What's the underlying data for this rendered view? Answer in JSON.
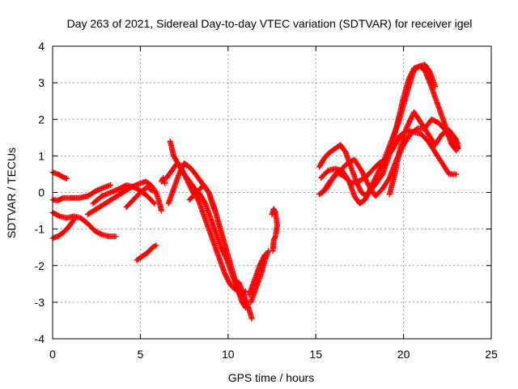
{
  "chart_data": {
    "type": "scatter",
    "title": "Day 263 of 2021, Sidereal Day-to-day VTEC variation (SDTVAR) for receiver igel",
    "xlabel": "GPS time / hours",
    "ylabel": "SDTVAR / TECUs",
    "xlim": [
      0,
      25
    ],
    "ylim": [
      -4,
      4
    ],
    "xticks": [
      0,
      5,
      10,
      15,
      20,
      25
    ],
    "yticks": [
      -4,
      -3,
      -2,
      -1,
      0,
      1,
      2,
      3,
      4
    ],
    "grid": true,
    "marker": "+",
    "color": "#ff0000",
    "series": [
      {
        "points": [
          [
            0.0,
            0.55
          ],
          [
            0.3,
            0.5
          ],
          [
            0.6,
            0.42
          ],
          [
            0.8,
            0.38
          ]
        ]
      },
      {
        "points": [
          [
            0.0,
            -0.2
          ],
          [
            0.3,
            -0.22
          ],
          [
            0.6,
            -0.15
          ],
          [
            1.0,
            -0.15
          ],
          [
            1.5,
            -0.15
          ],
          [
            2.0,
            -0.1
          ],
          [
            2.5,
            0.05
          ],
          [
            3.0,
            0.15
          ],
          [
            3.3,
            0.2
          ]
        ]
      },
      {
        "points": [
          [
            0.0,
            -0.55
          ],
          [
            0.4,
            -0.65
          ],
          [
            0.8,
            -0.7
          ],
          [
            1.2,
            -0.65
          ],
          [
            1.6,
            -0.7
          ],
          [
            2.0,
            -0.85
          ],
          [
            2.4,
            -1.05
          ],
          [
            2.8,
            -1.15
          ],
          [
            3.2,
            -1.2
          ],
          [
            3.6,
            -1.2
          ]
        ]
      },
      {
        "points": [
          [
            0.0,
            -1.25
          ],
          [
            0.3,
            -1.2
          ],
          [
            0.6,
            -1.1
          ],
          [
            0.9,
            -0.95
          ],
          [
            1.2,
            -0.75
          ]
        ]
      },
      {
        "points": [
          [
            2.0,
            -0.6
          ],
          [
            2.5,
            -0.45
          ],
          [
            3.0,
            -0.3
          ],
          [
            3.5,
            -0.15
          ],
          [
            4.0,
            0.0
          ],
          [
            4.5,
            0.15
          ],
          [
            5.0,
            0.25
          ],
          [
            5.3,
            0.3
          ],
          [
            5.6,
            0.2
          ],
          [
            5.9,
            0.0
          ],
          [
            6.1,
            -0.3
          ],
          [
            6.2,
            -0.5
          ]
        ]
      },
      {
        "points": [
          [
            2.3,
            -0.3
          ],
          [
            2.8,
            -0.1
          ],
          [
            3.3,
            0.0
          ],
          [
            3.8,
            0.1
          ],
          [
            4.2,
            0.2
          ],
          [
            4.6,
            0.15
          ],
          [
            5.0,
            0.05
          ],
          [
            5.4,
            -0.1
          ],
          [
            5.8,
            -0.3
          ]
        ]
      },
      {
        "points": [
          [
            4.2,
            -0.4
          ],
          [
            4.6,
            -0.2
          ],
          [
            5.0,
            0.0
          ],
          [
            5.4,
            0.15
          ],
          [
            5.7,
            0.05
          ]
        ]
      },
      {
        "points": [
          [
            4.8,
            -1.85
          ],
          [
            5.1,
            -1.75
          ],
          [
            5.4,
            -1.65
          ],
          [
            5.7,
            -1.5
          ],
          [
            5.9,
            -1.45
          ]
        ]
      },
      {
        "points": [
          [
            6.2,
            0.3
          ],
          [
            6.3,
            0.4
          ],
          [
            6.4,
            0.25
          ]
        ]
      },
      {
        "points": [
          [
            6.7,
            1.4
          ],
          [
            6.9,
            1.0
          ],
          [
            7.2,
            0.75
          ],
          [
            7.5,
            0.5
          ],
          [
            7.8,
            0.3
          ],
          [
            8.1,
            0.1
          ],
          [
            8.4,
            -0.05
          ],
          [
            8.7,
            -0.3
          ],
          [
            9.0,
            -0.7
          ],
          [
            9.3,
            -1.1
          ],
          [
            9.6,
            -1.5
          ],
          [
            9.9,
            -1.8
          ],
          [
            10.2,
            -2.2
          ],
          [
            10.5,
            -2.6
          ],
          [
            10.8,
            -3.0
          ],
          [
            11.0,
            -3.15
          ]
        ]
      },
      {
        "points": [
          [
            6.5,
            0.4
          ],
          [
            6.8,
            0.6
          ],
          [
            7.1,
            0.8
          ],
          [
            7.4,
            0.6
          ],
          [
            7.7,
            0.3
          ],
          [
            8.0,
            0.0
          ],
          [
            8.3,
            -0.2
          ],
          [
            8.6,
            -0.6
          ],
          [
            8.9,
            -1.0
          ],
          [
            9.2,
            -1.4
          ],
          [
            9.5,
            -1.8
          ],
          [
            9.8,
            -2.2
          ],
          [
            10.1,
            -2.5
          ],
          [
            10.4,
            -2.65
          ],
          [
            10.6,
            -2.45
          ],
          [
            10.9,
            -2.8
          ],
          [
            11.2,
            -3.2
          ],
          [
            11.35,
            -3.45
          ]
        ]
      },
      {
        "points": [
          [
            6.6,
            -0.3
          ],
          [
            6.9,
            0.1
          ],
          [
            7.2,
            0.5
          ],
          [
            7.5,
            0.8
          ],
          [
            7.9,
            0.65
          ],
          [
            8.3,
            0.4
          ],
          [
            8.6,
            0.2
          ],
          [
            8.9,
            0.0
          ],
          [
            9.2,
            -0.45
          ]
        ]
      },
      {
        "points": [
          [
            7.8,
            -0.2
          ],
          [
            8.2,
            0.0
          ],
          [
            8.6,
            0.2
          ],
          [
            8.9,
            0.0
          ],
          [
            9.2,
            -0.4
          ],
          [
            9.5,
            -0.9
          ],
          [
            9.8,
            -1.4
          ],
          [
            10.1,
            -1.9
          ],
          [
            10.4,
            -2.4
          ],
          [
            10.7,
            -2.8
          ],
          [
            11.0,
            -2.7
          ]
        ]
      },
      {
        "points": [
          [
            11.3,
            -3.0
          ],
          [
            11.6,
            -2.6
          ],
          [
            11.9,
            -2.2
          ],
          [
            12.1,
            -1.85
          ],
          [
            12.3,
            -1.6
          ]
        ]
      },
      {
        "points": [
          [
            11.2,
            -2.8
          ],
          [
            11.5,
            -2.4
          ],
          [
            11.8,
            -2.0
          ],
          [
            12.1,
            -1.7
          ]
        ]
      },
      {
        "points": [
          [
            12.5,
            -0.6
          ],
          [
            12.6,
            -0.45
          ],
          [
            12.7,
            -0.55
          ],
          [
            12.8,
            -0.9
          ],
          [
            12.7,
            -1.2
          ],
          [
            12.6,
            -1.3
          ],
          [
            12.55,
            -1.6
          ]
        ]
      },
      {
        "points": [
          [
            15.2,
            0.7
          ],
          [
            15.5,
            0.95
          ],
          [
            15.8,
            1.1
          ],
          [
            16.1,
            1.2
          ],
          [
            16.4,
            1.3
          ],
          [
            16.7,
            1.1
          ],
          [
            17.0,
            0.7
          ],
          [
            17.3,
            0.3
          ],
          [
            17.6,
            0.0
          ],
          [
            17.9,
            -0.1
          ],
          [
            18.2,
            0.1
          ],
          [
            18.5,
            0.3
          ],
          [
            18.8,
            0.5
          ],
          [
            19.1,
            0.9
          ],
          [
            19.4,
            1.4
          ],
          [
            19.7,
            2.0
          ],
          [
            20.0,
            2.6
          ],
          [
            20.3,
            3.1
          ],
          [
            20.6,
            3.4
          ],
          [
            20.9,
            3.45
          ],
          [
            21.2,
            3.35
          ],
          [
            21.5,
            3.0
          ]
        ]
      },
      {
        "points": [
          [
            15.3,
            0.4
          ],
          [
            15.7,
            0.6
          ],
          [
            16.1,
            0.65
          ],
          [
            16.5,
            0.6
          ],
          [
            16.9,
            0.3
          ],
          [
            17.2,
            -0.1
          ],
          [
            17.5,
            -0.3
          ],
          [
            17.8,
            -0.2
          ],
          [
            18.1,
            0.1
          ],
          [
            18.5,
            0.5
          ],
          [
            18.9,
            0.9
          ],
          [
            19.3,
            1.4
          ],
          [
            19.7,
            1.9
          ],
          [
            20.0,
            2.4
          ],
          [
            20.3,
            2.9
          ],
          [
            20.6,
            3.35
          ],
          [
            20.9,
            3.45
          ],
          [
            21.2,
            3.5
          ],
          [
            21.5,
            3.3
          ],
          [
            21.8,
            2.9
          ]
        ]
      },
      {
        "points": [
          [
            15.2,
            -0.05
          ],
          [
            15.6,
            0.1
          ],
          [
            16.0,
            0.4
          ],
          [
            16.4,
            0.6
          ],
          [
            16.8,
            0.8
          ],
          [
            17.2,
            0.9
          ],
          [
            17.6,
            0.6
          ],
          [
            18.0,
            0.2
          ],
          [
            18.4,
            -0.1
          ],
          [
            18.8,
            0.1
          ],
          [
            19.2,
            0.4
          ],
          [
            19.6,
            0.9
          ],
          [
            20.0,
            1.3
          ],
          [
            20.4,
            1.6
          ],
          [
            20.8,
            1.75
          ],
          [
            21.2,
            1.75
          ],
          [
            21.6,
            2.0
          ],
          [
            22.0,
            1.9
          ],
          [
            22.4,
            1.7
          ],
          [
            22.8,
            1.4
          ],
          [
            23.1,
            1.35
          ]
        ]
      },
      {
        "points": [
          [
            15.4,
            0.0
          ],
          [
            15.8,
            0.3
          ],
          [
            16.2,
            0.55
          ],
          [
            16.6,
            0.45
          ],
          [
            17.0,
            0.25
          ],
          [
            17.4,
            0.3
          ],
          [
            17.8,
            0.4
          ],
          [
            18.2,
            0.6
          ],
          [
            18.6,
            0.8
          ],
          [
            19.0,
            0.9
          ],
          [
            19.4,
            1.2
          ],
          [
            19.8,
            1.55
          ],
          [
            20.2,
            1.7
          ],
          [
            20.6,
            1.65
          ],
          [
            21.0,
            1.6
          ],
          [
            21.4,
            1.4
          ],
          [
            21.8,
            1.1
          ],
          [
            22.2,
            0.8
          ],
          [
            22.6,
            0.5
          ],
          [
            23.0,
            0.5
          ]
        ]
      },
      {
        "points": [
          [
            19.2,
            -0.05
          ],
          [
            19.5,
            0.5
          ],
          [
            19.8,
            1.2
          ],
          [
            20.2,
            1.8
          ],
          [
            20.6,
            2.2
          ],
          [
            21.0,
            1.9
          ],
          [
            21.4,
            1.6
          ],
          [
            21.8,
            1.3
          ],
          [
            22.2,
            1.6
          ],
          [
            22.6,
            1.7
          ],
          [
            23.0,
            1.45
          ],
          [
            23.1,
            1.2
          ]
        ]
      },
      {
        "points": [
          [
            21.5,
            3.0
          ],
          [
            21.8,
            2.6
          ],
          [
            22.1,
            2.2
          ],
          [
            22.4,
            1.8
          ],
          [
            22.7,
            1.35
          ],
          [
            23.0,
            1.15
          ],
          [
            23.1,
            1.25
          ]
        ]
      }
    ]
  }
}
